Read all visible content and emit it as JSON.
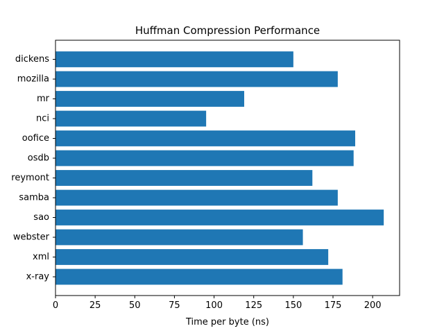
{
  "chart_data": {
    "type": "bar",
    "orientation": "horizontal",
    "title": "Huffman Compression Performance",
    "xlabel": "Time per byte (ns)",
    "ylabel": "",
    "xlim": [
      0,
      217
    ],
    "xticks": [
      0,
      25,
      50,
      75,
      100,
      125,
      150,
      175,
      200
    ],
    "grid": false,
    "categories": [
      "dickens",
      "mozilla",
      "mr",
      "nci",
      "oofice",
      "osdb",
      "reymont",
      "samba",
      "sao",
      "webster",
      "xml",
      "x-ray"
    ],
    "values": [
      150,
      178,
      119,
      95,
      189,
      188,
      162,
      178,
      207,
      156,
      172,
      181
    ],
    "colors": {
      "bar": "#1f77b4"
    }
  }
}
